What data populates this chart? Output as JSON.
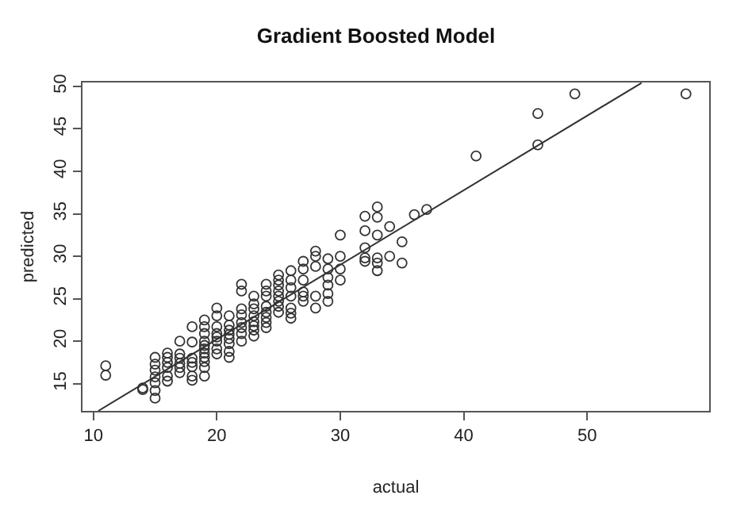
{
  "chart_data": {
    "type": "scatter",
    "title": "Gradient Boosted Model",
    "xlabel": "actual",
    "ylabel": "predicted",
    "xlim": [
      9.12,
      59.88
    ],
    "ylim": [
      11.8,
      50.45
    ],
    "xticks": [
      10,
      20,
      30,
      40,
      50
    ],
    "yticks": [
      15,
      20,
      25,
      30,
      35,
      40,
      45,
      50
    ],
    "marker": "circle",
    "series": [
      {
        "color": "#333333",
        "x": [
          11,
          11,
          14,
          14,
          15,
          15,
          15,
          15,
          15,
          15,
          15,
          16,
          16,
          16,
          16,
          16,
          16,
          17,
          17,
          17,
          17,
          17,
          17,
          18,
          18,
          18,
          18,
          18,
          18,
          18,
          19,
          19,
          19,
          19,
          19,
          19,
          19,
          19,
          19,
          19,
          19,
          20,
          20,
          20,
          20,
          20,
          20,
          20,
          20,
          21,
          21,
          21,
          21,
          21,
          21,
          21,
          21,
          22,
          22,
          22,
          22,
          22,
          22,
          22,
          22,
          23,
          23,
          23,
          23,
          23,
          23,
          23,
          23,
          24,
          24,
          24,
          24,
          24,
          24,
          24,
          24,
          25,
          25,
          25,
          25,
          25,
          25,
          25,
          25,
          26,
          26,
          26,
          26,
          26,
          26,
          26,
          27,
          27,
          27,
          27,
          27,
          27,
          28,
          28,
          28,
          28,
          28,
          29,
          29,
          29,
          29,
          29,
          29,
          30,
          30,
          30,
          30,
          32,
          32,
          32,
          32,
          32,
          33,
          33,
          33,
          33,
          33,
          33,
          34,
          34,
          35,
          35,
          36,
          37,
          41,
          46,
          46,
          49,
          58
        ],
        "values": [
          17.1,
          16.0,
          14.3,
          14.5,
          18.1,
          17.3,
          16.6,
          15.8,
          15.1,
          14.2,
          13.3,
          18.6,
          18.1,
          17.5,
          16.9,
          15.9,
          15.3,
          20.0,
          18.5,
          18.0,
          17.4,
          16.9,
          16.3,
          21.7,
          19.9,
          18.0,
          17.5,
          17.0,
          15.9,
          15.4,
          22.5,
          21.7,
          20.9,
          20.0,
          19.5,
          19.1,
          18.6,
          18.1,
          17.6,
          16.9,
          15.9,
          23.9,
          23.0,
          21.7,
          20.9,
          20.5,
          20.0,
          19.1,
          18.5,
          23.0,
          21.9,
          21.3,
          20.8,
          20.3,
          19.7,
          18.8,
          18.1,
          26.7,
          25.9,
          23.8,
          23.1,
          22.2,
          21.6,
          20.9,
          20.0,
          25.3,
          24.4,
          23.8,
          23.0,
          22.3,
          21.8,
          21.3,
          20.6,
          26.7,
          25.9,
          25.3,
          24.1,
          23.4,
          22.8,
          22.2,
          21.6,
          27.8,
          27.2,
          26.6,
          25.9,
          25.3,
          24.7,
          24.1,
          23.4,
          28.3,
          27.2,
          26.3,
          25.3,
          23.9,
          23.3,
          22.7,
          29.4,
          28.5,
          27.2,
          25.8,
          25.3,
          24.7,
          30.6,
          30.0,
          28.8,
          25.3,
          23.9,
          29.7,
          28.5,
          27.5,
          26.6,
          25.6,
          24.7,
          32.5,
          30.0,
          28.5,
          27.2,
          34.7,
          33.0,
          31.0,
          29.8,
          29.4,
          35.8,
          34.6,
          32.5,
          29.8,
          29.2,
          28.3,
          33.5,
          30.0,
          31.7,
          29.2,
          34.9,
          35.5,
          41.8,
          46.8,
          43.1,
          49.1,
          49.1
        ]
      },
      {
        "type": "line",
        "color": "#333333",
        "marker": "none",
        "x": [
          10.4,
          54.4
        ],
        "values": [
          11.8,
          50.4
        ]
      }
    ]
  }
}
